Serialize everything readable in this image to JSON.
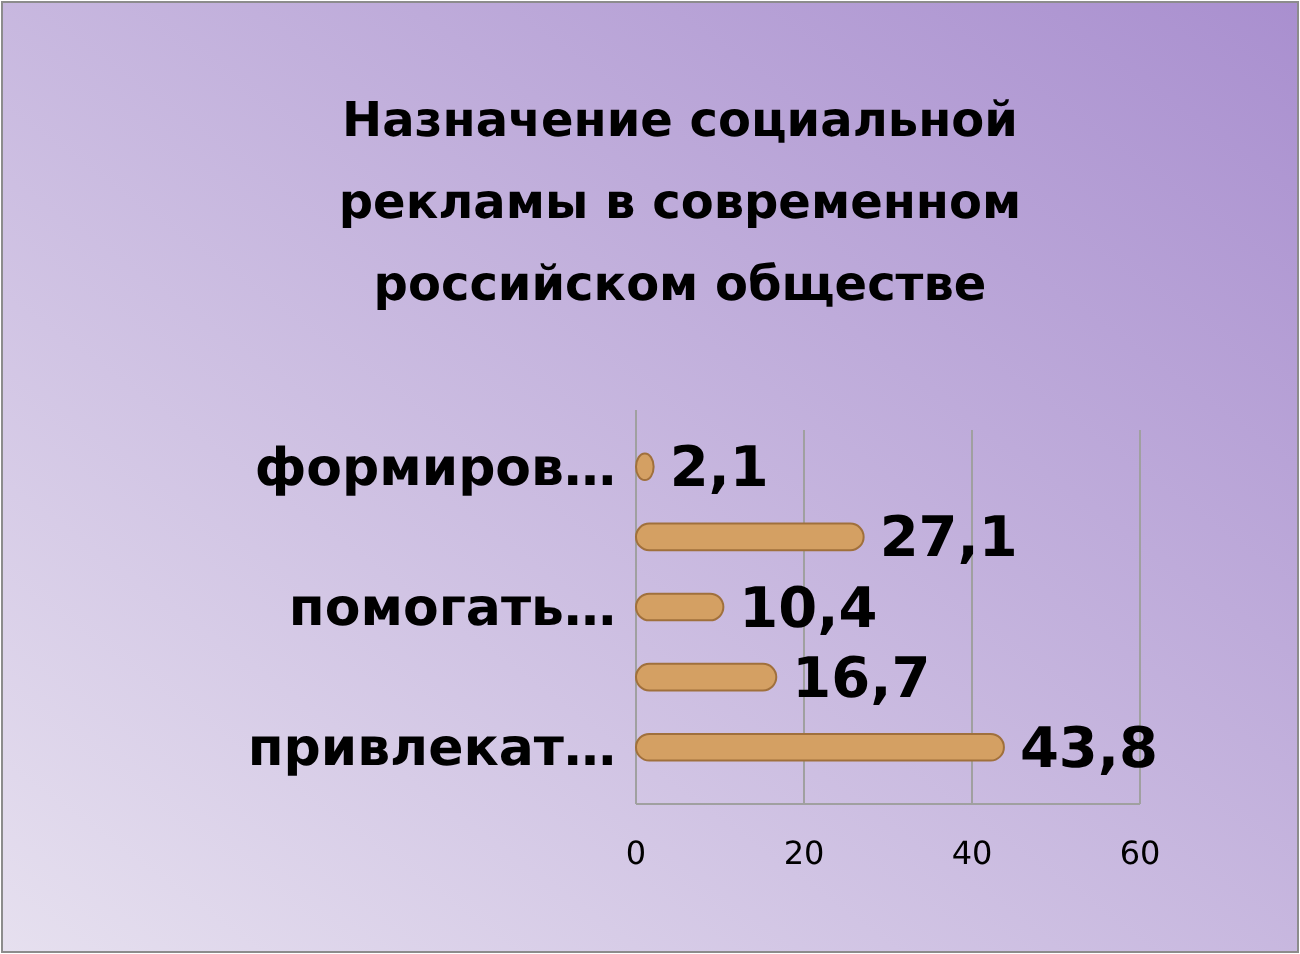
{
  "chart_data": {
    "type": "bar",
    "orientation": "horizontal",
    "title": "Назначение социальной рекламы в современном российском обществе",
    "categories": [
      "формиров…",
      null,
      "помогать…",
      null,
      "привлекат…"
    ],
    "values": [
      2.1,
      27.1,
      10.4,
      16.7,
      43.8
    ],
    "value_labels": [
      "2,1",
      "27,1",
      "10,4",
      "16,7",
      "43,8"
    ],
    "color": "#d4a063",
    "xlim": [
      0,
      60
    ],
    "xticks": [
      0,
      20,
      40,
      60
    ],
    "grid": "x"
  }
}
